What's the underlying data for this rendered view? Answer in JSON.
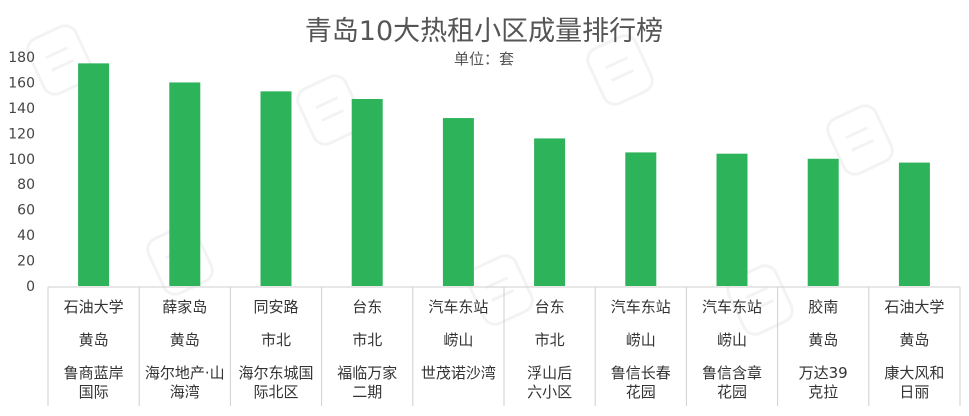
{
  "chart_data": {
    "type": "bar",
    "title": "青岛10大热租小区成量排行榜",
    "subtitle": "单位：套",
    "ylim": [
      0,
      180
    ],
    "ytick_step": 20,
    "yticks": [
      "0",
      "20",
      "40",
      "60",
      "80",
      "100",
      "120",
      "140",
      "160",
      "180"
    ],
    "grid": false,
    "legend": "none",
    "bar_color": "#2db35a",
    "categories": [
      {
        "district": "石油大学",
        "area": "黄岛",
        "community": [
          "鲁商蓝岸",
          "国际"
        ]
      },
      {
        "district": "薛家岛",
        "area": "黄岛",
        "community": [
          "海尔地产·山",
          "海湾"
        ]
      },
      {
        "district": "同安路",
        "area": "市北",
        "community": [
          "海尔东城国",
          "际北区"
        ]
      },
      {
        "district": "台东",
        "area": "市北",
        "community": [
          "福临万家",
          "二期"
        ]
      },
      {
        "district": "汽车东站",
        "area": "崂山",
        "community": [
          "世茂诺沙湾"
        ]
      },
      {
        "district": "台东",
        "area": "市北",
        "community": [
          "浮山后",
          "六小区"
        ]
      },
      {
        "district": "汽车东站",
        "area": "崂山",
        "community": [
          "鲁信长春",
          "花园"
        ]
      },
      {
        "district": "汽车东站",
        "area": "崂山",
        "community": [
          "鲁信含章",
          "花园"
        ]
      },
      {
        "district": "胶南",
        "area": "黄岛",
        "community": [
          "万达39",
          "克拉"
        ]
      },
      {
        "district": "石油大学",
        "area": "黄岛",
        "community": [
          "康大风和",
          "日丽"
        ]
      }
    ],
    "values": [
      175,
      160,
      153,
      147,
      132,
      116,
      105,
      104,
      100,
      97
    ]
  }
}
